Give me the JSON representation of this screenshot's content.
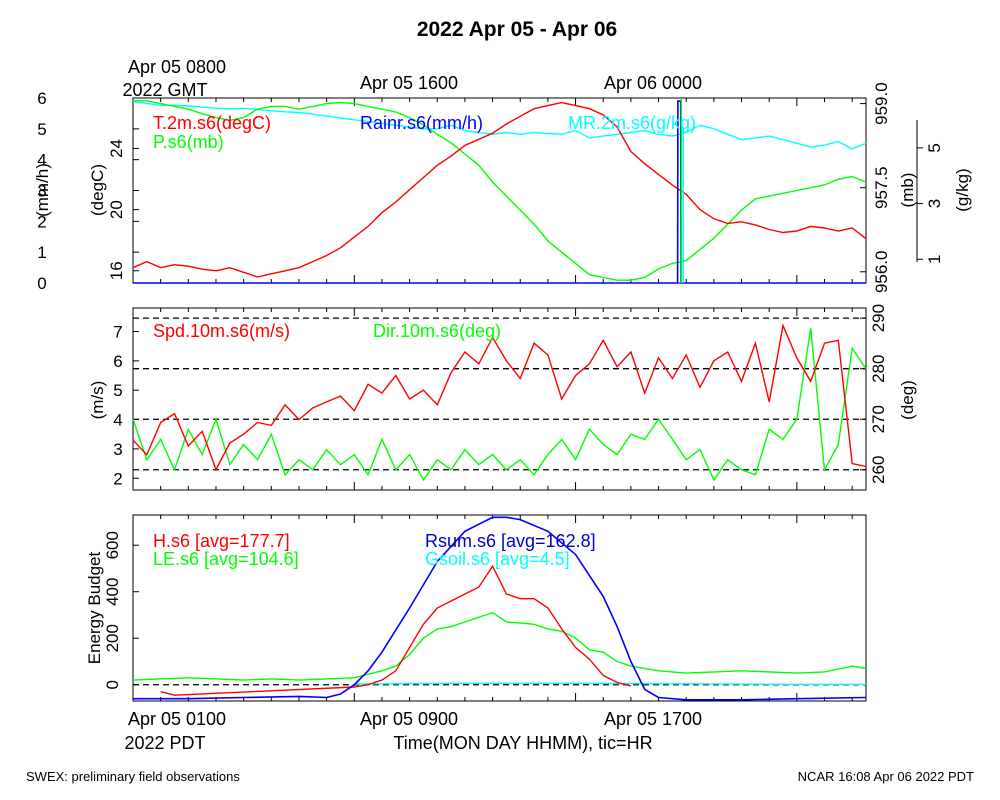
{
  "header": {
    "title": "2022 Apr 05 - Apr 06",
    "top_time_labels": [
      "Apr 05 0800",
      "Apr 05 1600",
      "Apr 06 0000"
    ],
    "top_year_label": "2022 GMT"
  },
  "footer": {
    "left_note": "SWEX: preliminary field observations",
    "right_note": "NCAR 16:08 Apr 06 2022 PDT"
  },
  "colors": {
    "red": "#ff0000",
    "green": "#00ff00",
    "blue": "#0000ff",
    "cyan": "#00ffff",
    "dark_blue": "#0000c8",
    "black": "#000000"
  },
  "chart_data": [
    {
      "type": "line",
      "panel": "top",
      "x": {
        "unit": "hours since Apr 05 0100 PDT",
        "range": [
          0,
          26.5
        ],
        "tick_step_hours": 1,
        "labeled_ticks": {
          "0": "Apr 05 0800",
          "8": "Apr 05 1600",
          "16": "Apr 06 0000"
        }
      },
      "axes": {
        "rain": {
          "label": "(mm/h)",
          "range": [
            0,
            6
          ],
          "ticks": [
            0,
            1,
            2,
            3,
            4,
            5,
            6
          ]
        },
        "temp": {
          "label": "(degC)",
          "range": [
            15.2,
            27.3
          ],
          "ticks": [
            16,
            20,
            24
          ]
        },
        "pres": {
          "label": "(mb)",
          "range": [
            955.8,
            959.1
          ],
          "ticks": [
            956.0,
            957.5,
            959.0
          ]
        },
        "mr": {
          "label": "(g/kg)",
          "range": [
            0.9,
            6.0
          ],
          "ticks": [
            1,
            3,
            5
          ]
        }
      },
      "series": [
        {
          "name": "T.2m.s6(degC)",
          "axis": "temp",
          "color": "#ff0000",
          "x": [
            0,
            0.5,
            1,
            1.5,
            2,
            2.5,
            3,
            3.5,
            4,
            4.5,
            5,
            5.5,
            6,
            6.5,
            7,
            7.5,
            8,
            8.5,
            9,
            9.5,
            10,
            10.5,
            11,
            11.5,
            12,
            12.5,
            13,
            13.5,
            14,
            14.5,
            15,
            15.5,
            16,
            16.5,
            17,
            17.5,
            18,
            18.5,
            19,
            19.5,
            20,
            20.5,
            21,
            21.5,
            22,
            22.5,
            23,
            23.5,
            24,
            24.5,
            25,
            25.5,
            26,
            26.5
          ],
          "values": [
            16.2,
            16.6,
            16.2,
            16.4,
            16.3,
            16.1,
            16.0,
            16.2,
            15.9,
            15.6,
            15.8,
            16.0,
            16.2,
            16.6,
            17.0,
            17.5,
            18.2,
            18.9,
            19.8,
            20.5,
            21.3,
            22.1,
            22.9,
            23.5,
            24.2,
            24.6,
            25.0,
            25.6,
            26.1,
            26.6,
            26.8,
            27.0,
            26.8,
            26.6,
            26.2,
            25.4,
            23.8,
            23.0,
            22.3,
            21.6,
            21.0,
            20.0,
            19.4,
            19.1,
            19.2,
            19.0,
            18.7,
            18.5,
            18.6,
            18.9,
            18.8,
            18.6,
            18.8,
            18.1
          ]
        },
        {
          "name": "P.s6(mb)",
          "axis": "pres",
          "color": "#00ff00",
          "x": [
            0,
            0.5,
            1,
            1.5,
            2,
            2.5,
            3,
            3.5,
            4,
            4.5,
            5,
            5.5,
            6,
            6.5,
            7,
            7.5,
            8,
            8.5,
            9,
            9.5,
            10,
            10.5,
            11,
            11.5,
            12,
            12.5,
            13,
            13.5,
            14,
            14.5,
            15,
            15.5,
            16,
            16.5,
            17,
            17.5,
            18,
            18.5,
            19,
            19.5,
            20,
            20.5,
            21,
            21.5,
            22,
            22.5,
            23,
            23.5,
            24,
            24.5,
            25,
            25.5,
            26,
            26.5
          ],
          "values": [
            959.05,
            959.05,
            959.0,
            958.95,
            958.9,
            958.82,
            958.75,
            958.7,
            958.75,
            958.9,
            958.95,
            958.95,
            958.9,
            958.95,
            959.0,
            959.02,
            959.0,
            958.95,
            958.9,
            958.85,
            958.75,
            958.62,
            958.45,
            958.3,
            958.1,
            957.9,
            957.6,
            957.35,
            957.1,
            956.85,
            956.55,
            956.35,
            956.15,
            955.95,
            955.9,
            955.85,
            955.85,
            955.9,
            956.05,
            956.15,
            956.2,
            956.4,
            956.6,
            956.85,
            957.1,
            957.3,
            957.35,
            957.4,
            957.45,
            957.5,
            957.55,
            957.65,
            957.7,
            957.6
          ]
        },
        {
          "name": "MR.2m.s6(g/kg)",
          "axis": "mr",
          "color": "#00ffff",
          "x": [
            0,
            0.5,
            1,
            1.5,
            2,
            2.5,
            3,
            3.5,
            4,
            4.5,
            5,
            5.5,
            6,
            6.5,
            7,
            7.5,
            8,
            8.5,
            9,
            9.5,
            10,
            10.5,
            11,
            11.5,
            12,
            12.5,
            13,
            13.5,
            14,
            14.5,
            15,
            15.5,
            16,
            16.5,
            17,
            17.5,
            18,
            18.5,
            19,
            19.5,
            20,
            20.5,
            21,
            21.5,
            22,
            22.5,
            23,
            23.5,
            24,
            24.5,
            25,
            25.5,
            26,
            26.5
          ],
          "values": [
            5.9,
            5.85,
            5.8,
            5.8,
            5.78,
            5.75,
            5.72,
            5.7,
            5.72,
            5.68,
            5.65,
            5.62,
            5.6,
            5.55,
            5.5,
            5.45,
            5.4,
            5.35,
            5.3,
            5.25,
            5.2,
            5.15,
            5.15,
            5.25,
            5.1,
            5.05,
            5.0,
            5.05,
            5.0,
            5.05,
            5.02,
            5.0,
            5.1,
            4.9,
            4.95,
            5.0,
            5.05,
            5.1,
            5.0,
            4.95,
            5.05,
            5.25,
            5.15,
            5.0,
            4.85,
            4.9,
            4.95,
            4.85,
            4.75,
            4.65,
            4.7,
            4.8,
            4.6,
            4.75
          ]
        },
        {
          "name": "Rainr.s6(mm/h)",
          "axis": "rain",
          "color": "#0000ff",
          "x": [
            0,
            19.69,
            19.7,
            19.8,
            19.81,
            26.5
          ],
          "values": [
            0,
            0,
            5.9,
            5.9,
            0,
            0
          ]
        }
      ],
      "spike_marks": {
        "hour": 19.75,
        "colors": [
          "#0000ff",
          "#00ff00",
          "#00ffff"
        ]
      }
    },
    {
      "type": "line",
      "panel": "middle",
      "axes": {
        "spd": {
          "label": "(m/s)",
          "range": [
            1.6,
            7.8
          ],
          "ticks": [
            2,
            3,
            4,
            5,
            6,
            7
          ]
        },
        "dir": {
          "label": "(deg)",
          "range": [
            256,
            292
          ],
          "ticks": [
            260,
            270,
            280,
            290
          ]
        }
      },
      "reference_lines_dir": [
        260,
        270,
        280,
        290
      ],
      "series": [
        {
          "name": "Spd.10m.s6(m/s)",
          "axis": "spd",
          "color": "#ff0000",
          "x": [
            0,
            0.5,
            1,
            1.5,
            2,
            2.5,
            3,
            3.5,
            4,
            4.5,
            5,
            5.5,
            6,
            6.5,
            7,
            7.5,
            8,
            8.5,
            9,
            9.5,
            10,
            10.5,
            11,
            11.5,
            12,
            12.5,
            13,
            13.5,
            14,
            14.5,
            15,
            15.5,
            16,
            16.5,
            17,
            17.5,
            18,
            18.5,
            19,
            19.5,
            20,
            20.5,
            21,
            21.5,
            22,
            22.5,
            23,
            23.5,
            24,
            24.5,
            25,
            25.5,
            26,
            26.5
          ],
          "values": [
            3.3,
            2.8,
            3.9,
            4.2,
            3.1,
            3.6,
            2.3,
            3.2,
            3.5,
            3.9,
            3.8,
            4.5,
            4.0,
            4.4,
            4.6,
            4.8,
            4.3,
            5.2,
            4.9,
            5.5,
            4.7,
            5.0,
            4.5,
            5.6,
            6.3,
            5.9,
            6.8,
            6.0,
            5.4,
            6.6,
            6.2,
            4.7,
            5.5,
            5.9,
            6.7,
            5.8,
            6.3,
            4.9,
            6.1,
            5.4,
            6.2,
            5.1,
            6.0,
            6.3,
            5.3,
            6.6,
            4.6,
            7.2,
            6.1,
            5.3,
            6.6,
            6.7,
            2.5,
            2.4
          ]
        },
        {
          "name": "Dir.10m.s6(deg)",
          "axis": "dir",
          "color": "#00ff00",
          "x": [
            0,
            0.5,
            1,
            1.5,
            2,
            2.5,
            3,
            3.5,
            4,
            4.5,
            5,
            5.5,
            6,
            6.5,
            7,
            7.5,
            8,
            8.5,
            9,
            9.5,
            10,
            10.5,
            11,
            11.5,
            12,
            12.5,
            13,
            13.5,
            14,
            14.5,
            15,
            15.5,
            16,
            16.5,
            17,
            17.5,
            18,
            18.5,
            19,
            19.5,
            20,
            20.5,
            21,
            21.5,
            22,
            22.5,
            23,
            23.5,
            24,
            24.5,
            25,
            25.5,
            26,
            26.5
          ],
          "values": [
            270,
            262,
            266,
            260,
            268,
            263,
            270,
            261,
            265,
            262,
            267,
            259,
            262,
            260,
            264,
            261,
            263,
            259,
            266,
            260,
            263,
            258,
            262,
            260,
            264,
            261,
            263,
            260,
            262,
            259,
            263,
            266,
            262,
            268,
            265,
            263,
            267,
            266,
            270,
            266,
            262,
            264,
            258,
            262,
            260,
            259,
            268,
            266,
            270,
            288,
            260,
            265,
            284,
            280
          ]
        }
      ]
    },
    {
      "type": "line",
      "panel": "bottom",
      "x": {
        "unit": "hours since Apr 05 0100 PDT",
        "range": [
          0,
          26.5
        ],
        "tick_step_hours": 1,
        "labeled_ticks": {
          "0": "Apr 05 0100",
          "8": "Apr 05 0900",
          "16": "Apr 05 1700"
        }
      },
      "xlabel": "Time(MON DAY HHMM), tic=HR",
      "year_label": "2022 PDT",
      "ylabel": "Energy Budget",
      "ylim": [
        -70,
        730
      ],
      "yticks": [
        0,
        200,
        400,
        600
      ],
      "series": [
        {
          "name": "H.s6 [avg=177.7]",
          "color": "#ff0000",
          "x": [
            1,
            1.5,
            8,
            8.5,
            9,
            9.5,
            10,
            10.5,
            11,
            11.5,
            12,
            12.5,
            13,
            13.5,
            14,
            14.5,
            15,
            15.5,
            16,
            16.5,
            17,
            17.5,
            18
          ],
          "values": [
            -30,
            -45,
            -10,
            0,
            20,
            60,
            160,
            260,
            330,
            360,
            390,
            420,
            510,
            390,
            370,
            370,
            330,
            240,
            160,
            110,
            40,
            10,
            -5
          ]
        },
        {
          "name": "LE.s6 [avg=104.6]",
          "color": "#00ff00",
          "x": [
            0,
            1,
            2,
            3,
            4,
            5,
            6,
            7,
            8,
            8.5,
            9,
            9.5,
            10,
            10.5,
            11,
            11.5,
            12,
            12.5,
            13,
            13.5,
            14,
            14.5,
            15,
            15.5,
            16,
            16.5,
            17,
            17.5,
            18,
            19,
            20,
            21,
            22,
            23,
            24,
            25,
            26,
            26.5
          ],
          "values": [
            20,
            25,
            30,
            25,
            20,
            25,
            20,
            25,
            30,
            45,
            60,
            80,
            130,
            200,
            240,
            250,
            270,
            290,
            310,
            270,
            265,
            260,
            240,
            230,
            200,
            150,
            140,
            100,
            80,
            60,
            50,
            55,
            60,
            55,
            50,
            55,
            80,
            70
          ]
        },
        {
          "name": "Rsum.s6 [avg=162.8]",
          "color": "#0000ff",
          "x": [
            0,
            2,
            4,
            6,
            7,
            7.5,
            8,
            8.5,
            9,
            10,
            11,
            12,
            13,
            13.5,
            14,
            15,
            16,
            17,
            17.5,
            18,
            18.5,
            19,
            20,
            22,
            24,
            26.5
          ],
          "values": [
            -60,
            -60,
            -55,
            -50,
            -55,
            -40,
            0,
            60,
            140,
            330,
            530,
            660,
            720,
            720,
            710,
            660,
            560,
            380,
            250,
            100,
            -20,
            -55,
            -65,
            -65,
            -60,
            -55
          ]
        },
        {
          "name": "Gsoil.s6 [avg=4.5]",
          "color": "#00ffff",
          "x": [
            8,
            12,
            16,
            20,
            24,
            26.5
          ],
          "values": [
            3,
            6,
            6,
            4,
            2,
            2
          ]
        }
      ],
      "reference_line": 0
    }
  ]
}
